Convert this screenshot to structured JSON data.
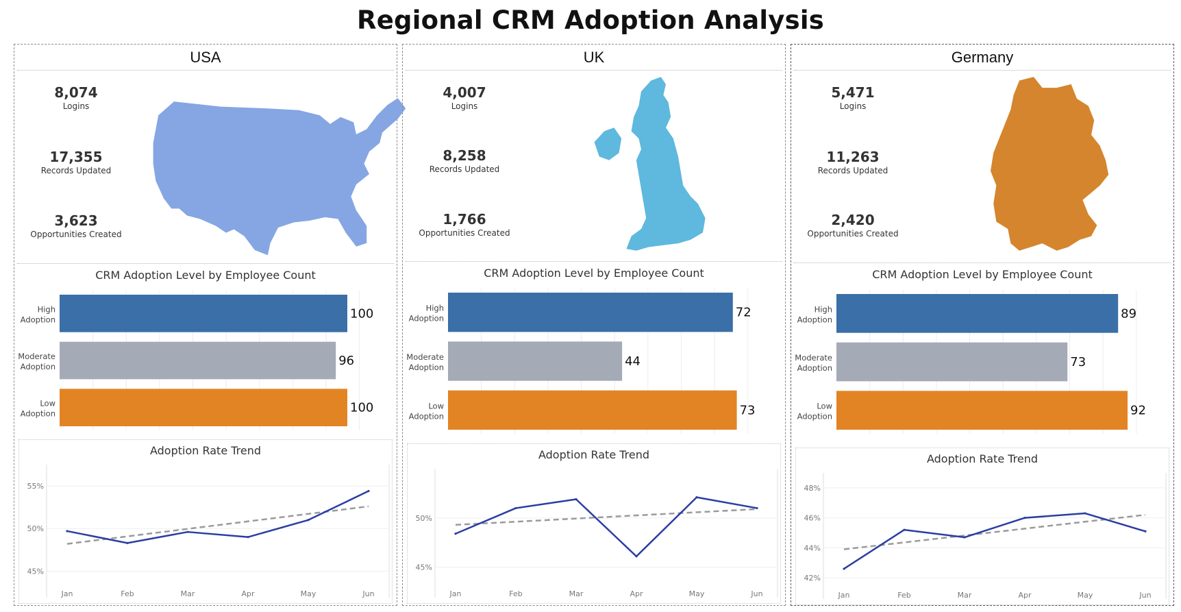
{
  "title": "Regional CRM Adoption Analysis",
  "colors": {
    "high": "#3a6fa7",
    "moderate": "#a4abb6",
    "low": "#e38424",
    "trend_line": "#2b3ea2",
    "trend_dashed": "#9a9a9a"
  },
  "bar_chart_title": "CRM Adoption Level by Employee Count",
  "trend_chart_title": "Adoption Rate Trend",
  "regions": [
    {
      "name": "USA",
      "map_icon": "usa-map-icon",
      "map_color": "#85a6e3",
      "kpis": [
        {
          "value": "8,074",
          "label": "Logins"
        },
        {
          "value": "17,355",
          "label": "Records Updated"
        },
        {
          "value": "3,623",
          "label": "Opportunities Created"
        }
      ]
    },
    {
      "name": "UK",
      "map_icon": "uk-map-icon",
      "map_color": "#5fb8dd",
      "kpis": [
        {
          "value": "4,007",
          "label": "Logins"
        },
        {
          "value": "8,258",
          "label": "Records Updated"
        },
        {
          "value": "1,766",
          "label": "Opportunities Created"
        }
      ]
    },
    {
      "name": "Germany",
      "map_icon": "germany-map-icon",
      "map_color": "#d5852d",
      "kpis": [
        {
          "value": "5,471",
          "label": "Logins"
        },
        {
          "value": "11,263",
          "label": "Records Updated"
        },
        {
          "value": "2,420",
          "label": "Opportunities Created"
        }
      ]
    }
  ],
  "chart_data": [
    {
      "type": "bar",
      "region": "USA",
      "title": "CRM Adoption Level by Employee Count",
      "categories": [
        [
          "High",
          "Adoption"
        ],
        [
          "Moderate",
          "Adoption"
        ],
        [
          "Low",
          "Adoption"
        ]
      ],
      "values": [
        100,
        96,
        100
      ],
      "xlim": [
        0,
        110
      ]
    },
    {
      "type": "bar",
      "region": "UK",
      "title": "CRM Adoption Level by Employee Count",
      "categories": [
        [
          "High",
          "Adoption"
        ],
        [
          "Moderate",
          "Adoption"
        ],
        [
          "Low",
          "Adoption"
        ]
      ],
      "values": [
        72,
        44,
        73
      ],
      "xlim": [
        0,
        80
      ]
    },
    {
      "type": "bar",
      "region": "Germany",
      "title": "CRM Adoption Level by Employee Count",
      "categories": [
        [
          "High",
          "Adoption"
        ],
        [
          "Moderate",
          "Adoption"
        ],
        [
          "Low",
          "Adoption"
        ]
      ],
      "values": [
        89,
        73,
        92
      ],
      "xlim": [
        0,
        100
      ]
    },
    {
      "type": "line",
      "region": "USA",
      "title": "Adoption Rate Trend",
      "x": [
        "Jan",
        "Feb",
        "Mar",
        "Apr",
        "May",
        "Jun"
      ],
      "values": [
        49.7,
        48.3,
        49.6,
        49.0,
        51.0,
        54.4
      ],
      "trend": [
        48.2,
        52.6
      ],
      "ylim": [
        43.5,
        57.5
      ],
      "yticks": [
        45,
        50,
        55
      ],
      "ytick_labels": [
        "45%",
        "50%",
        "55%"
      ]
    },
    {
      "type": "line",
      "region": "UK",
      "title": "Adoption Rate Trend",
      "x": [
        "Jan",
        "Feb",
        "Mar",
        "Apr",
        "May",
        "Jun"
      ],
      "values": [
        48.4,
        51.0,
        51.9,
        46.1,
        52.1,
        51.0
      ],
      "trend": [
        49.3,
        50.9
      ],
      "ylim": [
        43.3,
        55.0
      ],
      "yticks": [
        45,
        50
      ],
      "ytick_labels": [
        "45%",
        "50%"
      ]
    },
    {
      "type": "line",
      "region": "Germany",
      "title": "Adoption Rate Trend",
      "x": [
        "Jan",
        "Feb",
        "Mar",
        "Apr",
        "May",
        "Jun"
      ],
      "values": [
        42.6,
        45.2,
        44.7,
        46.0,
        46.3,
        45.1
      ],
      "trend": [
        43.9,
        46.2
      ],
      "ylim": [
        41.5,
        49.0
      ],
      "yticks": [
        42,
        44,
        46,
        48
      ],
      "ytick_labels": [
        "42%",
        "44%",
        "46%",
        "48%"
      ]
    }
  ]
}
